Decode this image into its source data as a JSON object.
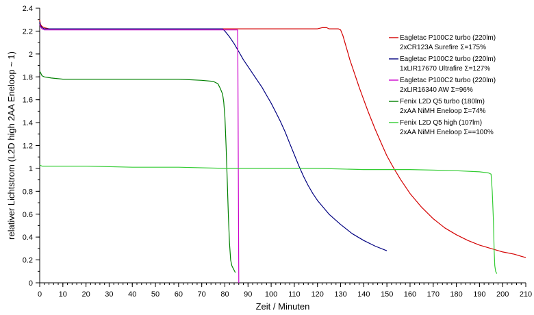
{
  "chart_data": {
    "type": "line",
    "xlabel": "Zeit / Minuten",
    "ylabel": "relativer Lichtstrom (L2D high 2AA Eneloop ~ 1)",
    "xlim": [
      0,
      210
    ],
    "ylim": [
      0,
      2.4
    ],
    "xticks": [
      0,
      10,
      20,
      30,
      40,
      50,
      60,
      70,
      80,
      90,
      100,
      110,
      120,
      130,
      140,
      150,
      160,
      170,
      180,
      190,
      200,
      210
    ],
    "yticks": [
      0,
      0.2,
      0.4,
      0.6,
      0.8,
      1,
      1.2,
      1.4,
      1.6,
      1.8,
      2,
      2.2,
      2.4
    ],
    "x_minor_step": 2,
    "y_minor_step": 0.1,
    "grid": false,
    "legend_position": "top-right",
    "series": [
      {
        "name": "Eagletac P100C2 turbo (220lm)",
        "name_line2": "2xCR123A Surefire  Σ=175%",
        "color": "#d40000",
        "x": [
          0,
          0.3,
          1,
          2,
          4,
          10,
          20,
          40,
          60,
          80,
          100,
          110,
          115,
          120,
          122,
          124,
          125,
          126,
          127,
          128,
          129,
          130,
          131,
          132,
          133,
          134,
          136,
          138,
          140,
          142,
          145,
          148,
          150,
          153,
          156,
          160,
          165,
          170,
          175,
          180,
          185,
          190,
          195,
          200,
          205,
          210
        ],
        "y": [
          2.3,
          2.26,
          2.24,
          2.23,
          2.22,
          2.22,
          2.22,
          2.22,
          2.22,
          2.22,
          2.22,
          2.22,
          2.22,
          2.22,
          2.23,
          2.23,
          2.22,
          2.22,
          2.22,
          2.22,
          2.22,
          2.21,
          2.16,
          2.09,
          2.02,
          1.95,
          1.83,
          1.71,
          1.6,
          1.49,
          1.34,
          1.2,
          1.11,
          1.0,
          0.9,
          0.78,
          0.66,
          0.56,
          0.48,
          0.42,
          0.37,
          0.33,
          0.3,
          0.27,
          0.25,
          0.22
        ]
      },
      {
        "name": "Eagletac P100C2 turbo (220lm)",
        "name_line2": "1xLIR17670 Ultrafire  Σ=127%",
        "color": "#000080",
        "x": [
          0,
          0.3,
          1,
          2,
          4,
          10,
          20,
          40,
          60,
          70,
          75,
          79,
          80,
          82,
          84,
          86,
          88,
          90,
          92,
          94,
          96,
          98,
          100,
          102,
          104,
          106,
          108,
          110,
          112,
          114,
          116,
          118,
          120,
          125,
          130,
          135,
          140,
          145,
          150
        ],
        "y": [
          2.28,
          2.25,
          2.23,
          2.22,
          2.22,
          2.22,
          2.22,
          2.22,
          2.22,
          2.22,
          2.22,
          2.22,
          2.2,
          2.15,
          2.09,
          2.02,
          1.95,
          1.89,
          1.83,
          1.77,
          1.71,
          1.64,
          1.57,
          1.49,
          1.41,
          1.32,
          1.22,
          1.12,
          1.02,
          0.93,
          0.85,
          0.78,
          0.72,
          0.6,
          0.51,
          0.43,
          0.37,
          0.32,
          0.28
        ]
      },
      {
        "name": "Eagletac P100C2 turbo (220lm)",
        "name_line2": "2xLIR16340 AW  Σ=96%",
        "color": "#cc00cc",
        "x": [
          0,
          0.3,
          1,
          2,
          4,
          10,
          20,
          40,
          60,
          80,
          85.5,
          85.6,
          85.8,
          86
        ],
        "y": [
          2.26,
          2.24,
          2.22,
          2.21,
          2.21,
          2.21,
          2.21,
          2.21,
          2.21,
          2.21,
          2.21,
          2.0,
          1.0,
          0.0
        ]
      },
      {
        "name": "Fenix L2D Q5 turbo (180lm)",
        "name_line2": "2xAA  NiMH Eneloop  Σ=74%",
        "color": "#008000",
        "x": [
          0,
          0.5,
          1,
          2,
          5,
          10,
          20,
          40,
          60,
          70,
          75,
          77,
          78,
          79,
          79.5,
          80,
          80.5,
          81,
          81.5,
          82,
          82.5,
          83,
          83.5,
          84,
          84.5
        ],
        "y": [
          1.85,
          1.83,
          1.81,
          1.8,
          1.79,
          1.78,
          1.78,
          1.78,
          1.78,
          1.77,
          1.76,
          1.74,
          1.7,
          1.65,
          1.58,
          1.45,
          1.2,
          0.9,
          0.6,
          0.35,
          0.2,
          0.15,
          0.13,
          0.11,
          0.09
        ]
      },
      {
        "name": "Fenix L2D Q5 high (107lm)",
        "name_line2": "2xAA  NiMH Eneloop  Σ==100%",
        "color": "#33cc33",
        "x": [
          0,
          1,
          3,
          10,
          20,
          40,
          60,
          80,
          100,
          120,
          140,
          160,
          180,
          190,
          194,
          195,
          195.5,
          196,
          196.3,
          196.6,
          197,
          197.5
        ],
        "y": [
          1.03,
          1.02,
          1.02,
          1.02,
          1.02,
          1.01,
          1.01,
          1.0,
          1.0,
          1.0,
          0.99,
          0.99,
          0.98,
          0.97,
          0.96,
          0.95,
          0.8,
          0.55,
          0.3,
          0.15,
          0.1,
          0.08
        ]
      }
    ]
  }
}
